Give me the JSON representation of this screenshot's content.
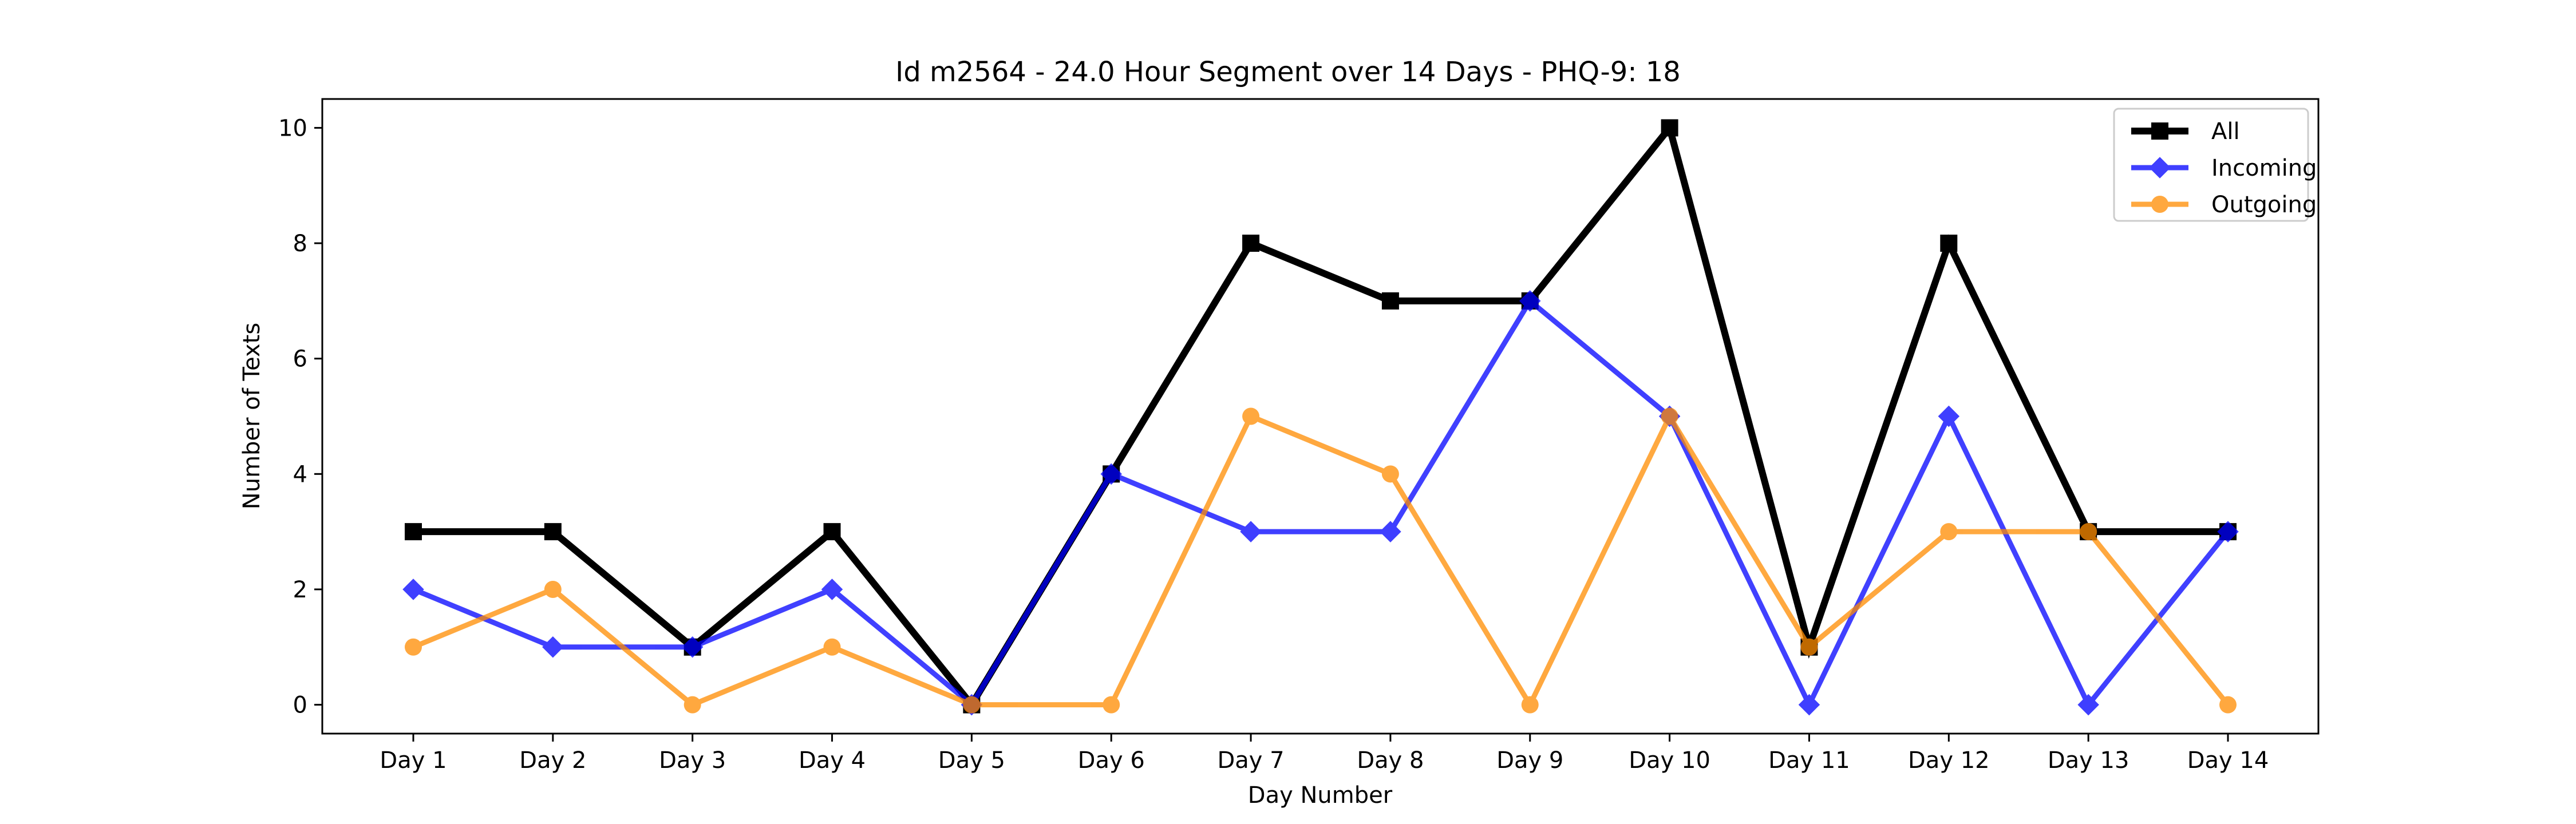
{
  "chart_data": {
    "type": "line",
    "title": "Id m2564 - 24.0 Hour Segment over 14 Days - PHQ-9: 18",
    "xlabel": "Day Number",
    "ylabel": "Number of Texts",
    "categories": [
      "Day 1",
      "Day 2",
      "Day 3",
      "Day 4",
      "Day 5",
      "Day 6",
      "Day 7",
      "Day 8",
      "Day 9",
      "Day 10",
      "Day 11",
      "Day 12",
      "Day 13",
      "Day 14"
    ],
    "ylim": [
      -0.5,
      10.5
    ],
    "yticks": [
      0,
      2,
      4,
      6,
      8,
      10
    ],
    "grid": false,
    "legend_position": "top-right",
    "series": [
      {
        "name": "All",
        "values": [
          3,
          3,
          1,
          3,
          0,
          4,
          8,
          7,
          7,
          10,
          1,
          8,
          3,
          3
        ],
        "color": "#000000",
        "marker": "square",
        "opacity": 1.0
      },
      {
        "name": "Incoming",
        "values": [
          2,
          1,
          1,
          2,
          0,
          4,
          3,
          3,
          7,
          5,
          0,
          5,
          0,
          3
        ],
        "color": "#0000ff",
        "marker": "diamond",
        "opacity": 0.75
      },
      {
        "name": "Outgoing",
        "values": [
          1,
          2,
          0,
          1,
          0,
          0,
          5,
          4,
          0,
          5,
          1,
          3,
          3,
          0
        ],
        "color": "#ff8c00",
        "marker": "circle",
        "opacity": 0.75
      }
    ]
  }
}
